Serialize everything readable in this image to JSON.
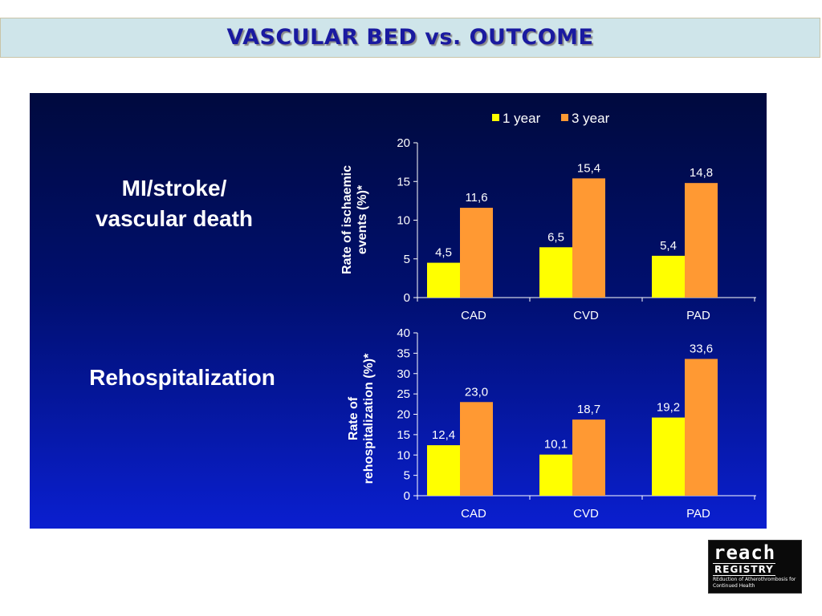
{
  "page": {
    "title": "VASCULAR BED vs. OUTCOME",
    "label_top": "MI/stroke/\nvascular death",
    "label_bottom": "Rehospitalization"
  },
  "logo": {
    "line1": "reach",
    "line2": "REGISTRY",
    "tagline": "REduction of Atherothrombosis for Continued Health"
  },
  "colors": {
    "one_year": "#ffff00",
    "three_year": "#ff9933",
    "background": "#0a1fd0"
  },
  "chart_data": [
    {
      "type": "bar",
      "categories": [
        "CAD",
        "CVD",
        "PAD"
      ],
      "series": [
        {
          "name": "1 year",
          "values": [
            4.5,
            6.5,
            5.4
          ],
          "labels": [
            "4,5",
            "6,5",
            "5,4"
          ]
        },
        {
          "name": "3 year",
          "values": [
            11.6,
            15.4,
            14.8
          ],
          "labels": [
            "11,6",
            "15,4",
            "14,8"
          ]
        }
      ],
      "ylabel_lines": [
        "Rate of ischaemic",
        "events (%)*"
      ],
      "ylim": [
        0,
        20
      ],
      "yticks": [
        0,
        5,
        10,
        15,
        20
      ],
      "legend": "top"
    },
    {
      "type": "bar",
      "categories": [
        "CAD",
        "CVD",
        "PAD"
      ],
      "series": [
        {
          "name": "1 year",
          "values": [
            12.4,
            10.1,
            19.2
          ],
          "labels": [
            "12,4",
            "10,1",
            "19,2"
          ]
        },
        {
          "name": "3 year",
          "values": [
            23.0,
            18.7,
            33.6
          ],
          "labels": [
            "23,0",
            "18,7",
            "33,6"
          ]
        }
      ],
      "ylabel_lines": [
        "Rate of",
        "rehospitalization (%)*"
      ],
      "ylim": [
        0,
        40
      ],
      "yticks": [
        0,
        5,
        10,
        15,
        20,
        25,
        30,
        35,
        40
      ]
    }
  ]
}
